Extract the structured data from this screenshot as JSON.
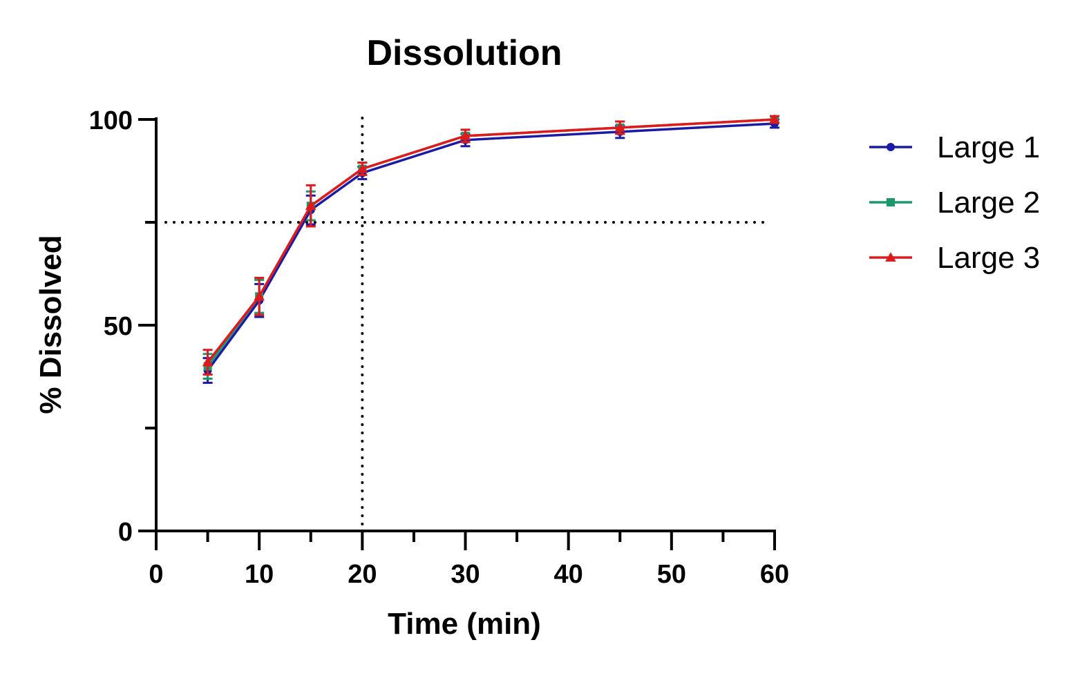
{
  "chart_data": {
    "type": "line",
    "title": "Dissolution",
    "xlabel": "Time (min)",
    "ylabel": "% Dissolved",
    "xlim": [
      0,
      60
    ],
    "ylim": [
      0,
      100
    ],
    "x_tick_labels": [
      "0",
      "10",
      "20",
      "30",
      "40",
      "50",
      "60"
    ],
    "y_tick_labels": [
      "0",
      "50",
      "100"
    ],
    "grid": false,
    "legend_position": "right",
    "reference_lines": {
      "x": 20,
      "y": 75
    },
    "x": [
      5,
      10,
      15,
      20,
      30,
      45,
      60
    ],
    "series": [
      {
        "name": "Large 1",
        "color": "#1a1aa6",
        "marker": "circle",
        "values": [
          39,
          56,
          78,
          87,
          95,
          97,
          99
        ],
        "errors": [
          3.0,
          4.0,
          3.5,
          1.5,
          1.5,
          1.5,
          1.0
        ]
      },
      {
        "name": "Large 2",
        "color": "#1a9a6a",
        "marker": "square",
        "values": [
          40,
          57,
          79,
          88,
          96,
          98,
          100
        ],
        "errors": [
          3.0,
          4.0,
          3.5,
          1.5,
          1.5,
          1.5,
          0.8
        ]
      },
      {
        "name": "Large 3",
        "color": "#e0191c",
        "marker": "triangle",
        "values": [
          41,
          57,
          79,
          88,
          96,
          98,
          100
        ],
        "errors": [
          3.0,
          4.5,
          5.0,
          1.5,
          1.5,
          1.5,
          0.8
        ]
      }
    ]
  }
}
